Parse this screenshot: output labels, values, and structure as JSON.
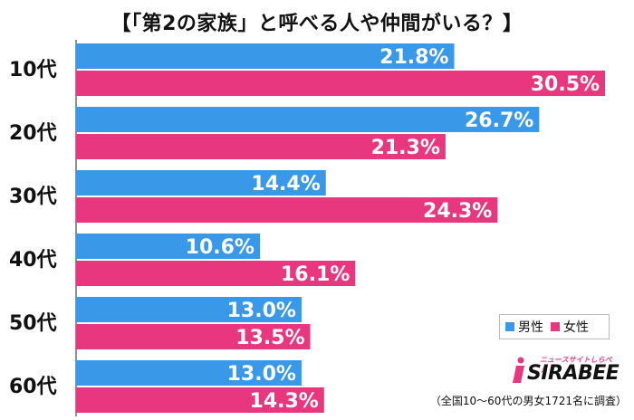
{
  "title": "【「第2の家族」と呼べる人や仲間がいる？】",
  "legend": {
    "male": "男性",
    "female": "女性"
  },
  "logo": {
    "brand": "SIRABEE",
    "tagline": "ニュースサイトしらべぇ",
    "icon": "sirabee-logo-icon"
  },
  "note": "（全国10〜60代の男女1721名に調査）",
  "colors": {
    "male": "#3a98e8",
    "female": "#e8377f"
  },
  "chart_data": {
    "type": "bar",
    "orientation": "horizontal",
    "title": "【「第2の家族」と呼べる人や仲間がいる？】",
    "categories": [
      "10代",
      "20代",
      "30代",
      "40代",
      "50代",
      "60代"
    ],
    "series": [
      {
        "name": "男性",
        "values": [
          21.8,
          26.7,
          14.4,
          10.6,
          13.0,
          13.0
        ],
        "labels": [
          "21.8%",
          "26.7%",
          "14.4%",
          "10.6%",
          "13.0%",
          "13.0%"
        ]
      },
      {
        "name": "女性",
        "values": [
          30.5,
          21.3,
          24.3,
          16.1,
          13.5,
          14.3
        ],
        "labels": [
          "30.5%",
          "21.3%",
          "24.3%",
          "16.1%",
          "13.5%",
          "14.3%"
        ]
      }
    ],
    "xlim": [
      0,
      32
    ],
    "grid": false,
    "legend_position": "bottom-right"
  }
}
